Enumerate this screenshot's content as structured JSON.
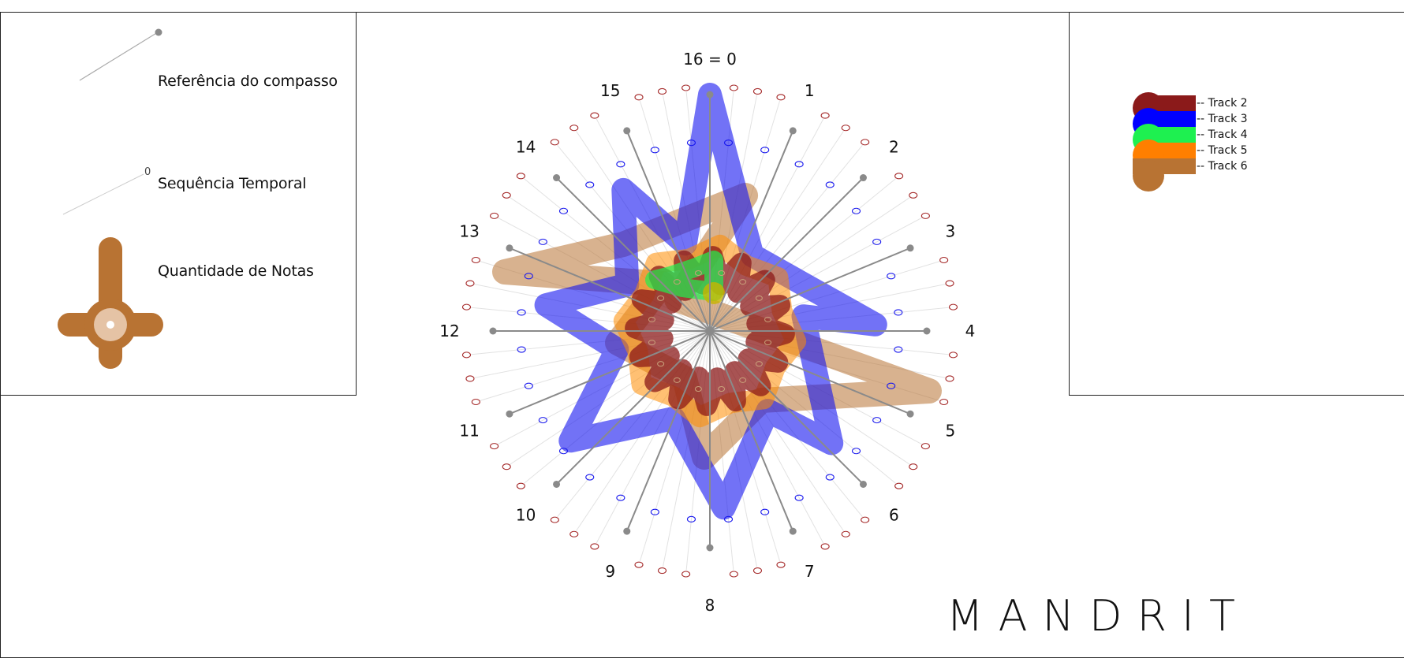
{
  "legend": {
    "measure_reference_label": "Referência do compasso",
    "time_sequence_label": "Sequência Temporal",
    "time_sequence_marker": "0",
    "note_count_label": "Quantidade de Notas"
  },
  "dial": {
    "positions": [
      "16 = 0",
      "1",
      "2",
      "3",
      "4",
      "5",
      "6",
      "7",
      "8",
      "9",
      "10",
      "11",
      "12",
      "13",
      "14",
      "15"
    ]
  },
  "tracks": [
    {
      "name": "-- Track 2",
      "color": "#8B1A1A"
    },
    {
      "name": "-- Track 3",
      "color": "#0000FF"
    },
    {
      "name": "-- Track 4",
      "color": "#1EF050"
    },
    {
      "name": "-- Track 5",
      "color": "#FF7F00"
    },
    {
      "name": "-- Track 6",
      "color": "#B87333"
    }
  ],
  "brand": "MANDRIT"
}
